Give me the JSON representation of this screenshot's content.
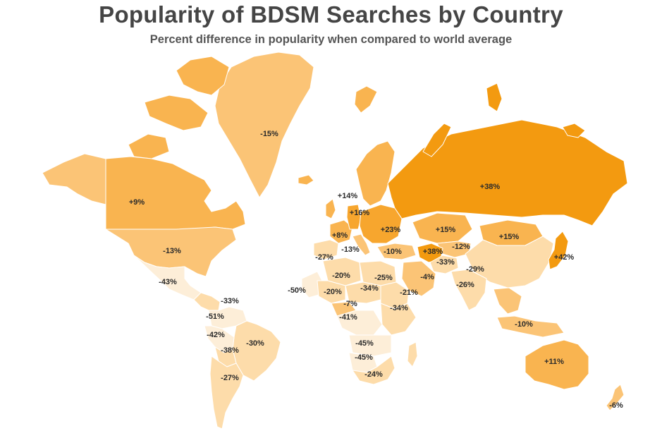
{
  "title": "Popularity of BDSM Searches by Country",
  "subtitle": "Percent difference in popularity when compared to world average",
  "colors": {
    "background": "#ffffff",
    "title": "#454545",
    "subtitle": "#555555",
    "scale_low": "#fdeed8",
    "scale_mid_low": "#fddcaa",
    "scale_mid": "#fbc476",
    "scale_mid_high": "#f9b450",
    "scale_high": "#f7a62e",
    "scale_max": "#f39a10",
    "border": "#ffffff",
    "label": "#2a2a2a"
  },
  "regions": [
    {
      "id": "greenland",
      "label": "-15%",
      "value": -15
    },
    {
      "id": "canada",
      "label": "+9%",
      "value": 9
    },
    {
      "id": "usa",
      "label": "-13%",
      "value": -13
    },
    {
      "id": "mexico",
      "label": "-43%",
      "value": -43
    },
    {
      "id": "central-america",
      "label": "-33%",
      "value": -33
    },
    {
      "id": "colombia",
      "label": "-51%",
      "value": -51
    },
    {
      "id": "peru",
      "label": "-42%",
      "value": -42
    },
    {
      "id": "brazil",
      "label": "-30%",
      "value": -30
    },
    {
      "id": "bolivia",
      "label": "-38%",
      "value": -38
    },
    {
      "id": "argentina",
      "label": "-27%",
      "value": -27
    },
    {
      "id": "scandinavia",
      "label": "+14%",
      "value": 14
    },
    {
      "id": "germany",
      "label": "+16%",
      "value": 16
    },
    {
      "id": "france",
      "label": "+8%",
      "value": 8
    },
    {
      "id": "eastern-europe",
      "label": "+23%",
      "value": 23
    },
    {
      "id": "italy",
      "label": "-13%",
      "value": -13
    },
    {
      "id": "spain",
      "label": "-27%",
      "value": -27
    },
    {
      "id": "turkey",
      "label": "-10%",
      "value": -10
    },
    {
      "id": "russia",
      "label": "+38%",
      "value": 38
    },
    {
      "id": "kazakhstan",
      "label": "+15%",
      "value": 15
    },
    {
      "id": "mongolia",
      "label": "+15%",
      "value": 15
    },
    {
      "id": "iran-region",
      "label": "+38%",
      "value": 38
    },
    {
      "id": "central-asia",
      "label": "-12%",
      "value": -12
    },
    {
      "id": "afghanistan",
      "label": "-33%",
      "value": -33
    },
    {
      "id": "china",
      "label": "-29%",
      "value": -29
    },
    {
      "id": "india",
      "label": "-26%",
      "value": -26
    },
    {
      "id": "japan",
      "label": "+42%",
      "value": 42
    },
    {
      "id": "southeast-asia",
      "label": "-10%",
      "value": -10
    },
    {
      "id": "australia",
      "label": "+11%",
      "value": 11
    },
    {
      "id": "new-zealand",
      "label": "-6%",
      "value": -6
    },
    {
      "id": "west-africa-coast",
      "label": "-50%",
      "value": -50
    },
    {
      "id": "algeria",
      "label": "-20%",
      "value": -20
    },
    {
      "id": "mali",
      "label": "-20%",
      "value": -20
    },
    {
      "id": "libya",
      "label": "-25%",
      "value": -25
    },
    {
      "id": "chad",
      "label": "-34%",
      "value": -34
    },
    {
      "id": "sudan",
      "label": "-21%",
      "value": -21
    },
    {
      "id": "arabia",
      "label": "-4%",
      "value": -4
    },
    {
      "id": "nigeria",
      "label": "-7%",
      "value": -7
    },
    {
      "id": "east-africa",
      "label": "-34%",
      "value": -34
    },
    {
      "id": "congo",
      "label": "-41%",
      "value": -41
    },
    {
      "id": "zambia",
      "label": "-45%",
      "value": -45
    },
    {
      "id": "namibia",
      "label": "-45%",
      "value": -45
    },
    {
      "id": "south-africa",
      "label": "-24%",
      "value": -24
    }
  ]
}
